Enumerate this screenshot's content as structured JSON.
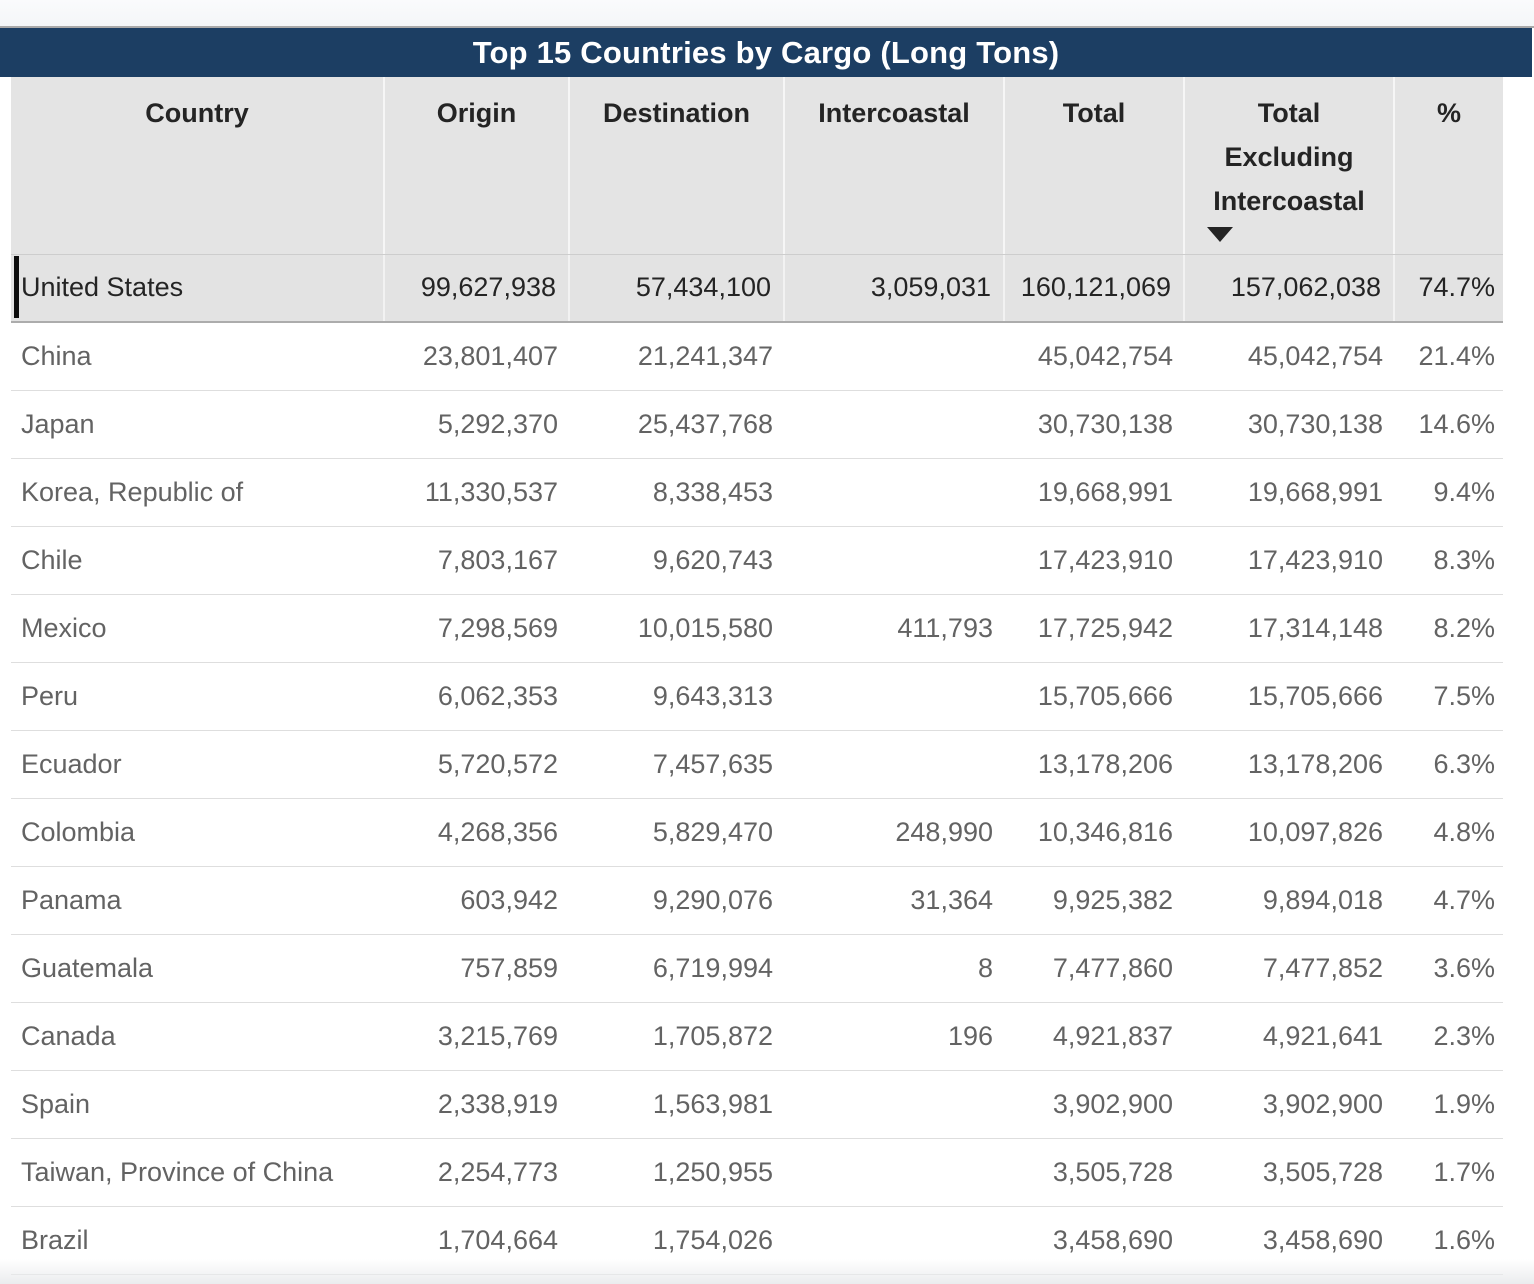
{
  "title": "Top 15 Countries by Cargo (Long Tons)",
  "columns": [
    {
      "id": "country",
      "label": "Country"
    },
    {
      "id": "origin",
      "label": "Origin"
    },
    {
      "id": "destination",
      "label": "Destination"
    },
    {
      "id": "intercoastal",
      "label": "Intercoastal"
    },
    {
      "id": "total",
      "label": "Total"
    },
    {
      "id": "total_excluding_intercoastal",
      "label": "Total Excluding Intercoastal"
    },
    {
      "id": "pct",
      "label": "%"
    }
  ],
  "sort": {
    "column": "total_excluding_intercoastal",
    "direction": "descending",
    "icon": "sort-descending-arrow"
  },
  "selected_row": "United States",
  "rows": [
    {
      "country": "United States",
      "origin": "99,627,938",
      "destination": "57,434,100",
      "intercoastal": "3,059,031",
      "total": "160,121,069",
      "total_excl": "157,062,038",
      "pct": "74.7%",
      "selected": true
    },
    {
      "country": "China",
      "origin": "23,801,407",
      "destination": "21,241,347",
      "intercoastal": "",
      "total": "45,042,754",
      "total_excl": "45,042,754",
      "pct": "21.4%",
      "selected": false
    },
    {
      "country": "Japan",
      "origin": "5,292,370",
      "destination": "25,437,768",
      "intercoastal": "",
      "total": "30,730,138",
      "total_excl": "30,730,138",
      "pct": "14.6%",
      "selected": false
    },
    {
      "country": "Korea, Republic of",
      "origin": "11,330,537",
      "destination": "8,338,453",
      "intercoastal": "",
      "total": "19,668,991",
      "total_excl": "19,668,991",
      "pct": "9.4%",
      "selected": false
    },
    {
      "country": "Chile",
      "origin": "7,803,167",
      "destination": "9,620,743",
      "intercoastal": "",
      "total": "17,423,910",
      "total_excl": "17,423,910",
      "pct": "8.3%",
      "selected": false
    },
    {
      "country": "Mexico",
      "origin": "7,298,569",
      "destination": "10,015,580",
      "intercoastal": "411,793",
      "total": "17,725,942",
      "total_excl": "17,314,148",
      "pct": "8.2%",
      "selected": false
    },
    {
      "country": "Peru",
      "origin": "6,062,353",
      "destination": "9,643,313",
      "intercoastal": "",
      "total": "15,705,666",
      "total_excl": "15,705,666",
      "pct": "7.5%",
      "selected": false
    },
    {
      "country": "Ecuador",
      "origin": "5,720,572",
      "destination": "7,457,635",
      "intercoastal": "",
      "total": "13,178,206",
      "total_excl": "13,178,206",
      "pct": "6.3%",
      "selected": false
    },
    {
      "country": "Colombia",
      "origin": "4,268,356",
      "destination": "5,829,470",
      "intercoastal": "248,990",
      "total": "10,346,816",
      "total_excl": "10,097,826",
      "pct": "4.8%",
      "selected": false
    },
    {
      "country": "Panama",
      "origin": "603,942",
      "destination": "9,290,076",
      "intercoastal": "31,364",
      "total": "9,925,382",
      "total_excl": "9,894,018",
      "pct": "4.7%",
      "selected": false
    },
    {
      "country": "Guatemala",
      "origin": "757,859",
      "destination": "6,719,994",
      "intercoastal": "8",
      "total": "7,477,860",
      "total_excl": "7,477,852",
      "pct": "3.6%",
      "selected": false
    },
    {
      "country": "Canada",
      "origin": "3,215,769",
      "destination": "1,705,872",
      "intercoastal": "196",
      "total": "4,921,837",
      "total_excl": "4,921,641",
      "pct": "2.3%",
      "selected": false
    },
    {
      "country": "Spain",
      "origin": "2,338,919",
      "destination": "1,563,981",
      "intercoastal": "",
      "total": "3,902,900",
      "total_excl": "3,902,900",
      "pct": "1.9%",
      "selected": false
    },
    {
      "country": "Taiwan, Province of China",
      "origin": "2,254,773",
      "destination": "1,250,955",
      "intercoastal": "",
      "total": "3,505,728",
      "total_excl": "3,505,728",
      "pct": "1.7%",
      "selected": false
    },
    {
      "country": "Brazil",
      "origin": "1,704,664",
      "destination": "1,754,026",
      "intercoastal": "",
      "total": "3,458,690",
      "total_excl": "3,458,690",
      "pct": "1.6%",
      "selected": false
    }
  ],
  "colors": {
    "title_bar": "#1c3e63",
    "title_text": "#ffffff",
    "header_bg": "#e4e4e4",
    "selected_row_bg": "#e3e3e3",
    "header_text": "#242424",
    "data_text": "#636363",
    "selection_caret": "#0d0d0d"
  },
  "chart_data": {
    "type": "table",
    "title": "Top 15 Countries by Cargo (Long Tons)",
    "columns": [
      "Country",
      "Origin",
      "Destination",
      "Intercoastal",
      "Total",
      "Total Excluding Intercoastal",
      "%"
    ],
    "sorted_by": {
      "column": "Total Excluding Intercoastal",
      "direction": "descending"
    },
    "rows": [
      {
        "country": "United States",
        "origin": 99627938,
        "destination": 57434100,
        "intercoastal": 3059031,
        "total": 160121069,
        "total_excluding_intercoastal": 157062038,
        "pct": 74.7
      },
      {
        "country": "China",
        "origin": 23801407,
        "destination": 21241347,
        "intercoastal": null,
        "total": 45042754,
        "total_excluding_intercoastal": 45042754,
        "pct": 21.4
      },
      {
        "country": "Japan",
        "origin": 5292370,
        "destination": 25437768,
        "intercoastal": null,
        "total": 30730138,
        "total_excluding_intercoastal": 30730138,
        "pct": 14.6
      },
      {
        "country": "Korea, Republic of",
        "origin": 11330537,
        "destination": 8338453,
        "intercoastal": null,
        "total": 19668991,
        "total_excluding_intercoastal": 19668991,
        "pct": 9.4
      },
      {
        "country": "Chile",
        "origin": 7803167,
        "destination": 9620743,
        "intercoastal": null,
        "total": 17423910,
        "total_excluding_intercoastal": 17423910,
        "pct": 8.3
      },
      {
        "country": "Mexico",
        "origin": 7298569,
        "destination": 10015580,
        "intercoastal": 411793,
        "total": 17725942,
        "total_excluding_intercoastal": 17314148,
        "pct": 8.2
      },
      {
        "country": "Peru",
        "origin": 6062353,
        "destination": 9643313,
        "intercoastal": null,
        "total": 15705666,
        "total_excluding_intercoastal": 15705666,
        "pct": 7.5
      },
      {
        "country": "Ecuador",
        "origin": 5720572,
        "destination": 7457635,
        "intercoastal": null,
        "total": 13178206,
        "total_excluding_intercoastal": 13178206,
        "pct": 6.3
      },
      {
        "country": "Colombia",
        "origin": 4268356,
        "destination": 5829470,
        "intercoastal": 248990,
        "total": 10346816,
        "total_excluding_intercoastal": 10097826,
        "pct": 4.8
      },
      {
        "country": "Panama",
        "origin": 603942,
        "destination": 9290076,
        "intercoastal": 31364,
        "total": 9925382,
        "total_excluding_intercoastal": 9894018,
        "pct": 4.7
      },
      {
        "country": "Guatemala",
        "origin": 757859,
        "destination": 6719994,
        "intercoastal": 8,
        "total": 7477860,
        "total_excluding_intercoastal": 7477852,
        "pct": 3.6
      },
      {
        "country": "Canada",
        "origin": 3215769,
        "destination": 1705872,
        "intercoastal": 196,
        "total": 4921837,
        "total_excluding_intercoastal": 4921641,
        "pct": 2.3
      },
      {
        "country": "Spain",
        "origin": 2338919,
        "destination": 1563981,
        "intercoastal": null,
        "total": 3902900,
        "total_excluding_intercoastal": 3902900,
        "pct": 1.9
      },
      {
        "country": "Taiwan, Province of China",
        "origin": 2254773,
        "destination": 1250955,
        "intercoastal": null,
        "total": 3505728,
        "total_excluding_intercoastal": 3505728,
        "pct": 1.7
      },
      {
        "country": "Brazil",
        "origin": 1704664,
        "destination": 1754026,
        "intercoastal": null,
        "total": 3458690,
        "total_excluding_intercoastal": 3458690,
        "pct": 1.6
      }
    ]
  }
}
